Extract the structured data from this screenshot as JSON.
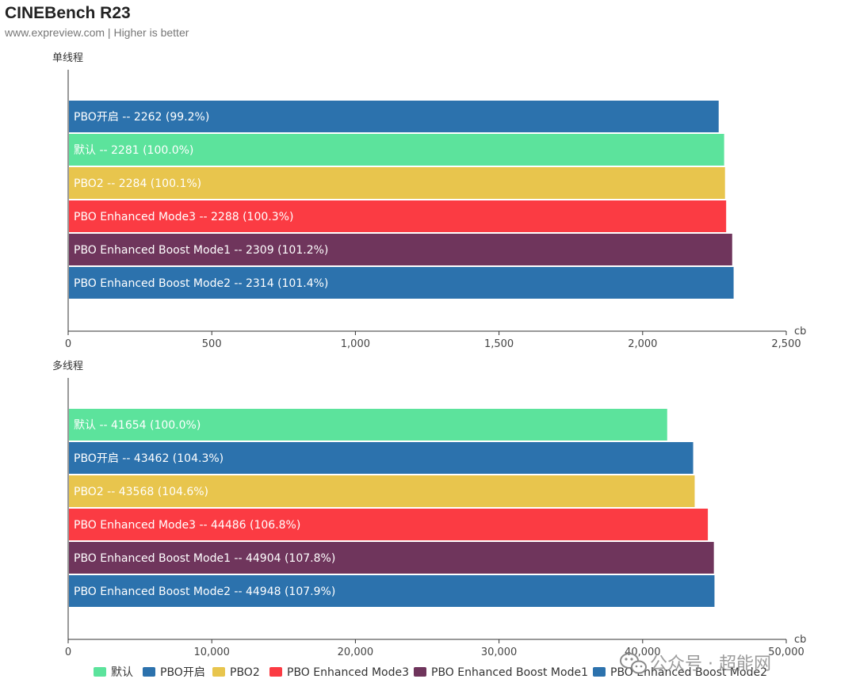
{
  "header": {
    "title": "CINEBench R23",
    "subtitle": "www.expreview.com | Higher is better"
  },
  "watermark": {
    "text": "公众号 · 超能网",
    "icon": "wechat-icon"
  },
  "colors": {
    "默认": "#5ce39c",
    "PBO开启": "#2c72ad",
    "PBO2": "#e8c54d",
    "PBO Enhanced Mode3": "#fb3b43",
    "PBO Enhanced Boost Mode1": "#6f355c",
    "PBO Enhanced Boost Mode2": "#2c72ad"
  },
  "legend": [
    "默认",
    "PBO开启",
    "PBO2",
    "PBO Enhanced Mode3",
    "PBO Enhanced Boost Mode1",
    "PBO Enhanced Boost Mode2"
  ],
  "chart_data": [
    {
      "type": "bar",
      "orientation": "horizontal",
      "title": "单线程",
      "xlabel": "cb",
      "xlim": [
        0,
        2500
      ],
      "xticks": [
        0,
        500,
        1000,
        1500,
        2000,
        2500
      ],
      "xtick_labels": [
        "0",
        "500",
        "1,000",
        "1,500",
        "2,000",
        "2,500"
      ],
      "bars": [
        {
          "name": "PBO开启",
          "value": 2262,
          "pct": "99.2%"
        },
        {
          "name": "默认",
          "value": 2281,
          "pct": "100.0%"
        },
        {
          "name": "PBO2",
          "value": 2284,
          "pct": "100.1%"
        },
        {
          "name": "PBO Enhanced Mode3",
          "value": 2288,
          "pct": "100.3%"
        },
        {
          "name": "PBO Enhanced Boost Mode1",
          "value": 2309,
          "pct": "101.2%"
        },
        {
          "name": "PBO Enhanced Boost Mode2",
          "value": 2314,
          "pct": "101.4%"
        }
      ]
    },
    {
      "type": "bar",
      "orientation": "horizontal",
      "title": "多线程",
      "xlabel": "cb",
      "xlim": [
        0,
        50000
      ],
      "xticks": [
        0,
        10000,
        20000,
        30000,
        40000,
        50000
      ],
      "xtick_labels": [
        "0",
        "10,000",
        "20,000",
        "30,000",
        "40,000",
        "50,000"
      ],
      "bars": [
        {
          "name": "默认",
          "value": 41654,
          "pct": "100.0%"
        },
        {
          "name": "PBO开启",
          "value": 43462,
          "pct": "104.3%"
        },
        {
          "name": "PBO2",
          "value": 43568,
          "pct": "104.6%"
        },
        {
          "name": "PBO Enhanced Mode3",
          "value": 44486,
          "pct": "106.8%"
        },
        {
          "name": "PBO Enhanced Boost Mode1",
          "value": 44904,
          "pct": "107.8%"
        },
        {
          "name": "PBO Enhanced Boost Mode2",
          "value": 44948,
          "pct": "107.9%"
        }
      ]
    }
  ]
}
